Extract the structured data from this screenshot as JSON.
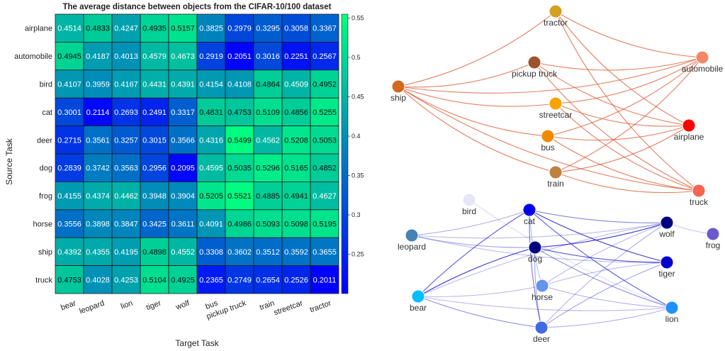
{
  "chart_data": [
    {
      "type": "heatmap",
      "title": "The average distance between objects from the CIFAR-10/100 dataset",
      "xlabel": "Target Task",
      "ylabel": "Source Task",
      "x_categories": [
        "bear",
        "leopard",
        "lion",
        "tiger",
        "wolf",
        "bus",
        "pickup truck",
        "train",
        "streetcar",
        "tractor"
      ],
      "y_categories": [
        "airplane",
        "automobile",
        "bird",
        "cat",
        "deer",
        "dog",
        "frog",
        "horse",
        "ship",
        "truck"
      ],
      "values": [
        [
          "0.4514",
          "0.4833",
          "0.4247",
          "0.4935",
          "0.5157",
          "0.3825",
          "0.2979",
          "0.3295",
          "0.3058",
          "0.3367"
        ],
        [
          "0.4945",
          "0.4187",
          "0.4013",
          "0.4579",
          "0.4673",
          "0.2919",
          "0.2051",
          "0.3016",
          "0.2251",
          "0.2567"
        ],
        [
          "0.4107",
          "0.3959",
          "0.4167",
          "0.4431",
          "0.4391",
          "0.4154",
          "0.4108",
          "0.4864",
          "0.4509",
          "0.4952"
        ],
        [
          "0.3001",
          "0.2114",
          "0.2693",
          "0.2491",
          "0.3317",
          "0.4831",
          "0.4753",
          "0.5109",
          "0.4856",
          "0.5255"
        ],
        [
          "0.2715",
          "0.3561",
          "0.3257",
          "0.3015",
          "0.3566",
          "0.4316",
          "0.5499",
          "0.4562",
          "0.5208",
          "0.5053"
        ],
        [
          "0.2839",
          "0.3742",
          "0.3563",
          "0.2956",
          "0.2095",
          "0.4595",
          "0.5035",
          "0.5296",
          "0.5165",
          "0.4852"
        ],
        [
          "0.4155",
          "0.4374",
          "0.4462",
          "0.3948",
          "0.3904",
          "0.5205",
          "0.5521",
          "0.4885",
          "0.4941",
          "0.4627"
        ],
        [
          "0.3556",
          "0.3898",
          "0.3847",
          "0.3425",
          "0.3611",
          "0.4091",
          "0.4986",
          "0.5093",
          "0.5098",
          "0.5195"
        ],
        [
          "0.4392",
          "0.4355",
          "0.4195",
          "0.4898",
          "0.4552",
          "0.3308",
          "0.3602",
          "0.3512",
          "0.3592",
          "0.3655"
        ],
        [
          "0.4753",
          "0.4028",
          "0.4253",
          "0.5104",
          "0.4925",
          "0.2365",
          "0.2749",
          "0.2654",
          "0.2526",
          "0.2011"
        ]
      ],
      "colorbar": {
        "ticks": [
          "0.25",
          "0.3",
          "0.35",
          "0.4",
          "0.45",
          "0.5",
          "0.55"
        ],
        "range": [
          0.2,
          0.555
        ],
        "colormap": "winter"
      }
    },
    {
      "type": "network",
      "nodes": [
        {
          "id": "tractor",
          "label": "tractor",
          "color": "#d4a020"
        },
        {
          "id": "pickup",
          "label": "pickup truck",
          "color": "#a0522d"
        },
        {
          "id": "streetcar",
          "label": "streetcar",
          "color": "#f7a400"
        },
        {
          "id": "bus",
          "label": "bus",
          "color": "#f08a00"
        },
        {
          "id": "train",
          "label": "train",
          "color": "#c08040"
        },
        {
          "id": "ship",
          "label": "ship",
          "color": "#d2691e"
        },
        {
          "id": "automobile",
          "label": "automobile",
          "color": "#f58866"
        },
        {
          "id": "airplane",
          "label": "airplane",
          "color": "#ff0000"
        },
        {
          "id": "truck",
          "label": "truck",
          "color": "#f56550"
        }
      ],
      "edges": [
        [
          "ship",
          "tractor"
        ],
        [
          "ship",
          "automobile"
        ],
        [
          "ship",
          "truck"
        ],
        [
          "ship",
          "pickup"
        ],
        [
          "ship",
          "streetcar"
        ],
        [
          "ship",
          "bus"
        ],
        [
          "ship",
          "train"
        ],
        [
          "tractor",
          "automobile"
        ],
        [
          "tractor",
          "airplane"
        ],
        [
          "tractor",
          "truck"
        ],
        [
          "pickup",
          "automobile"
        ],
        [
          "pickup",
          "airplane"
        ],
        [
          "pickup",
          "truck"
        ],
        [
          "streetcar",
          "automobile"
        ],
        [
          "streetcar",
          "airplane"
        ],
        [
          "streetcar",
          "truck"
        ],
        [
          "bus",
          "automobile"
        ],
        [
          "bus",
          "airplane"
        ],
        [
          "bus",
          "truck"
        ],
        [
          "train",
          "automobile"
        ],
        [
          "train",
          "airplane"
        ],
        [
          "train",
          "truck"
        ]
      ],
      "edge_color": "#d9542b"
    },
    {
      "type": "network",
      "nodes": [
        {
          "id": "bird",
          "label": "bird",
          "color": "#e6e6fa"
        },
        {
          "id": "cat",
          "label": "cat",
          "color": "#0000ee"
        },
        {
          "id": "leopard",
          "label": "leopard",
          "color": "#4682b4"
        },
        {
          "id": "dog",
          "label": "dog",
          "color": "#000080"
        },
        {
          "id": "wolf",
          "label": "wolf",
          "color": "#000080"
        },
        {
          "id": "frog",
          "label": "frog",
          "color": "#6a5acd"
        },
        {
          "id": "tiger",
          "label": "tiger",
          "color": "#0000cd"
        },
        {
          "id": "bear",
          "label": "bear",
          "color": "#00bfff"
        },
        {
          "id": "horse",
          "label": "horse",
          "color": "#6495ed"
        },
        {
          "id": "lion",
          "label": "lion",
          "color": "#1e90ff"
        },
        {
          "id": "deer",
          "label": "deer",
          "color": "#4169e1"
        }
      ],
      "edges": [
        [
          "bird",
          "lion",
          0.15
        ],
        [
          "leopard",
          "cat",
          0.35
        ],
        [
          "leopard",
          "dog",
          0.4
        ],
        [
          "leopard",
          "tiger",
          0.3
        ],
        [
          "leopard",
          "wolf",
          0.3
        ],
        [
          "cat",
          "wolf",
          0.55
        ],
        [
          "cat",
          "tiger",
          0.85
        ],
        [
          "cat",
          "lion",
          0.75
        ],
        [
          "cat",
          "deer",
          0.6
        ],
        [
          "cat",
          "bear",
          0.7
        ],
        [
          "cat",
          "horse",
          0.3
        ],
        [
          "dog",
          "wolf",
          0.9
        ],
        [
          "dog",
          "tiger",
          0.75
        ],
        [
          "dog",
          "lion",
          0.5
        ],
        [
          "dog",
          "bear",
          0.9
        ],
        [
          "dog",
          "deer",
          0.4
        ],
        [
          "wolf",
          "frog",
          0.25
        ],
        [
          "wolf",
          "horse",
          0.3
        ],
        [
          "wolf",
          "deer",
          0.35
        ],
        [
          "wolf",
          "bear",
          0.3
        ],
        [
          "tiger",
          "horse",
          0.3
        ],
        [
          "tiger",
          "deer",
          0.4
        ],
        [
          "bear",
          "horse",
          0.3
        ],
        [
          "bear",
          "deer",
          0.5
        ],
        [
          "bear",
          "lion",
          0.3
        ],
        [
          "horse",
          "lion",
          0.35
        ],
        [
          "deer",
          "lion",
          0.35
        ]
      ],
      "edge_color": "#1a1acd"
    }
  ]
}
